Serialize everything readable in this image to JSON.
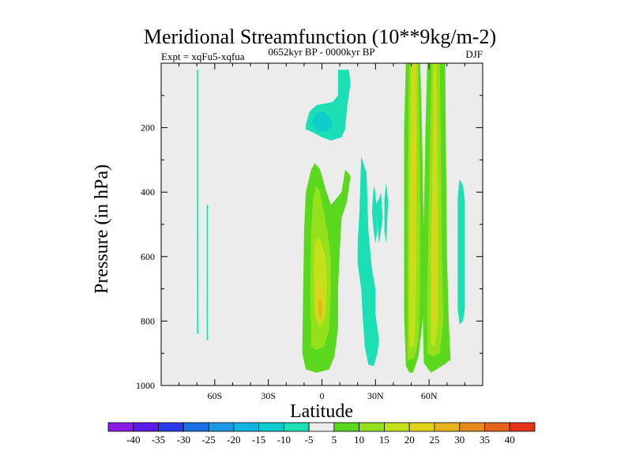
{
  "chart_data": {
    "type": "heatmap",
    "title": "Meridional Streamfunction (10**9kg/m-2)",
    "subtitle_left": "Expt = xqFu5-xqfua",
    "subtitle_center": "0652kyr BP - 0000kyr BP",
    "subtitle_right": "DJF",
    "xlabel": "Latitude",
    "ylabel": "Pressure (in hPa)",
    "xlim": [
      -90,
      90
    ],
    "ylim": [
      1000,
      0
    ],
    "x_ticks": [
      {
        "value": -60,
        "label": "60S"
      },
      {
        "value": -30,
        "label": "30S"
      },
      {
        "value": 0,
        "label": "0"
      },
      {
        "value": 30,
        "label": "30N"
      },
      {
        "value": 60,
        "label": "60N"
      }
    ],
    "y_ticks": [
      {
        "value": 200,
        "label": "200"
      },
      {
        "value": 400,
        "label": "400"
      },
      {
        "value": 600,
        "label": "600"
      },
      {
        "value": 800,
        "label": "800"
      },
      {
        "value": 1000,
        "label": "1000"
      }
    ],
    "colorbar": {
      "levels": [
        -40,
        -35,
        -30,
        -25,
        -20,
        -15,
        -10,
        -5,
        5,
        10,
        15,
        20,
        25,
        30,
        35,
        40
      ],
      "labels": [
        "-40",
        "-35",
        "-30",
        "-25",
        "-20",
        "-15",
        "-10",
        "-5",
        "5",
        "10",
        "15",
        "20",
        "25",
        "30",
        "35",
        "40"
      ],
      "colors": [
        "#8a1ae6",
        "#5e1ae6",
        "#2a3ae6",
        "#1a6ee6",
        "#1a9ae6",
        "#10b4e0",
        "#10cccc",
        "#1ae0b4",
        "#ececec",
        "#5ad81e",
        "#94e01a",
        "#c4e01a",
        "#e0d21a",
        "#e6b41a",
        "#e68a1a",
        "#e6621a",
        "#e6321a"
      ]
    },
    "contours": [
      {
        "name": "sh-thin-band-a",
        "level": -5,
        "polygon": [
          [
            -70,
            20
          ],
          [
            -69.3,
            20
          ],
          [
            -69.2,
            840
          ],
          [
            -69.9,
            840
          ]
        ]
      },
      {
        "name": "sh-thin-band-b",
        "level": -5,
        "polygon": [
          [
            -64.5,
            440
          ],
          [
            -63.8,
            440
          ],
          [
            -63.8,
            860
          ],
          [
            -64.5,
            860
          ]
        ]
      },
      {
        "name": "upper-tropical-cell",
        "level": -5,
        "polygon": [
          [
            -9,
            190
          ],
          [
            -7,
            150
          ],
          [
            -3,
            130
          ],
          [
            2,
            125
          ],
          [
            6,
            120
          ],
          [
            9,
            100
          ],
          [
            9,
            20
          ],
          [
            15,
            20
          ],
          [
            16,
            60
          ],
          [
            14,
            140
          ],
          [
            13,
            205
          ],
          [
            11,
            230
          ],
          [
            5,
            240
          ],
          [
            0,
            230
          ],
          [
            -5,
            215
          ],
          [
            -9,
            205
          ]
        ]
      },
      {
        "name": "upper-tropical-cell-inner",
        "level": -10,
        "polygon": [
          [
            -6,
            185
          ],
          [
            -3,
            155
          ],
          [
            1,
            150
          ],
          [
            5,
            170
          ],
          [
            6,
            195
          ],
          [
            3,
            210
          ],
          [
            -2,
            215
          ]
        ]
      },
      {
        "name": "nh-subtropical-tongue",
        "level": -5,
        "polygon": [
          [
            22,
            290
          ],
          [
            25,
            340
          ],
          [
            26,
            520
          ],
          [
            28,
            640
          ],
          [
            30,
            700
          ],
          [
            30,
            780
          ],
          [
            32,
            860
          ],
          [
            31,
            900
          ],
          [
            29,
            940
          ],
          [
            26,
            935
          ],
          [
            24,
            880
          ],
          [
            23,
            800
          ],
          [
            22,
            700
          ],
          [
            20,
            620
          ],
          [
            20,
            560
          ],
          [
            21,
            460
          ]
        ]
      },
      {
        "name": "nh-spike-a",
        "level": -5,
        "polygon": [
          [
            28,
            460
          ],
          [
            29,
            380
          ],
          [
            30,
            400
          ],
          [
            31,
            520
          ],
          [
            30,
            560
          ],
          [
            29,
            520
          ]
        ]
      },
      {
        "name": "nh-spike-b",
        "level": -5,
        "polygon": [
          [
            30,
            440
          ],
          [
            32,
            420
          ],
          [
            33,
            400
          ],
          [
            34,
            480
          ],
          [
            32,
            560
          ]
        ]
      },
      {
        "name": "nh-spike-c",
        "level": -5,
        "polygon": [
          [
            35,
            420
          ],
          [
            36,
            370
          ],
          [
            37,
            430
          ],
          [
            36,
            560
          ],
          [
            35,
            520
          ]
        ]
      },
      {
        "name": "nh-high-lat-blob",
        "level": -5,
        "polygon": [
          [
            76,
            420
          ],
          [
            77,
            360
          ],
          [
            79,
            380
          ],
          [
            80,
            430
          ],
          [
            80,
            530
          ],
          [
            80,
            660
          ],
          [
            80,
            760
          ],
          [
            79,
            800
          ],
          [
            77,
            810
          ],
          [
            76,
            760
          ]
        ]
      },
      {
        "name": "tropical-positive-cell",
        "level": 5,
        "polygon": [
          [
            -11,
            900
          ],
          [
            -10.5,
            700
          ],
          [
            -10,
            520
          ],
          [
            -9,
            400
          ],
          [
            -6,
            330
          ],
          [
            -4,
            310
          ],
          [
            -1,
            330
          ],
          [
            2,
            390
          ],
          [
            5,
            440
          ],
          [
            8,
            420
          ],
          [
            11,
            400
          ],
          [
            13,
            330
          ],
          [
            16,
            350
          ],
          [
            14,
            430
          ],
          [
            11,
            480
          ],
          [
            10,
            580
          ],
          [
            9,
            700
          ],
          [
            9,
            820
          ],
          [
            7,
            910
          ],
          [
            4,
            950
          ],
          [
            -3,
            960
          ],
          [
            -9,
            950
          ]
        ]
      },
      {
        "name": "tropical-positive-core-1",
        "level": 10,
        "polygon": [
          [
            -6,
            880
          ],
          [
            -6.5,
            700
          ],
          [
            -6,
            520
          ],
          [
            -5,
            420
          ],
          [
            -3,
            380
          ],
          [
            -1,
            400
          ],
          [
            1,
            460
          ],
          [
            3,
            520
          ],
          [
            5,
            600
          ],
          [
            5,
            720
          ],
          [
            4,
            830
          ],
          [
            1,
            880
          ],
          [
            -3,
            890
          ]
        ]
      },
      {
        "name": "tropical-positive-core-2",
        "level": 15,
        "polygon": [
          [
            -4,
            780
          ],
          [
            -4.5,
            640
          ],
          [
            -4,
            560
          ],
          [
            -2,
            540
          ],
          [
            0,
            560
          ],
          [
            2,
            600
          ],
          [
            3,
            680
          ],
          [
            2,
            780
          ],
          [
            -1,
            820
          ]
        ]
      },
      {
        "name": "tropical-positive-core-3",
        "level": 20,
        "polygon": [
          [
            -3,
            760
          ],
          [
            -3,
            700
          ],
          [
            -2,
            680
          ],
          [
            0,
            700
          ],
          [
            1,
            740
          ],
          [
            0,
            790
          ],
          [
            -2,
            810
          ]
        ]
      },
      {
        "name": "tropical-positive-core-4",
        "level": 25,
        "polygon": [
          [
            -2,
            770
          ],
          [
            -2,
            740
          ],
          [
            -1,
            730
          ],
          [
            0,
            750
          ],
          [
            0,
            790
          ],
          [
            -1,
            800
          ]
        ]
      },
      {
        "name": "nh-positive-band-a",
        "level": 5,
        "polygon": [
          [
            47,
            940
          ],
          [
            46,
            780
          ],
          [
            46,
            500
          ],
          [
            46,
            200
          ],
          [
            47,
            0
          ],
          [
            55,
            0
          ],
          [
            56,
            200
          ],
          [
            57,
            500
          ],
          [
            58,
            700
          ],
          [
            56,
            820
          ],
          [
            54,
            910
          ],
          [
            51,
            960
          ],
          [
            49,
            960
          ]
        ]
      },
      {
        "name": "nh-positive-band-a-core",
        "level": 10,
        "polygon": [
          [
            48,
            920
          ],
          [
            48,
            700
          ],
          [
            48,
            400
          ],
          [
            48.5,
            100
          ],
          [
            49,
            0
          ],
          [
            54,
            0
          ],
          [
            54.5,
            200
          ],
          [
            55,
            450
          ],
          [
            55,
            700
          ],
          [
            54,
            860
          ],
          [
            52,
            910
          ],
          [
            50,
            920
          ]
        ]
      },
      {
        "name": "nh-positive-band-a-inner",
        "level": 15,
        "polygon": [
          [
            49,
            880
          ],
          [
            49,
            600
          ],
          [
            49.5,
            300
          ],
          [
            50,
            0
          ],
          [
            53,
            0
          ],
          [
            53,
            300
          ],
          [
            53,
            600
          ],
          [
            52,
            860
          ],
          [
            51,
            880
          ]
        ]
      },
      {
        "name": "nh-positive-band-a-peak",
        "level": 20,
        "polygon": [
          [
            50,
            620
          ],
          [
            50,
            400
          ],
          [
            51,
            200
          ],
          [
            51.5,
            0
          ],
          [
            52,
            0
          ],
          [
            52,
            300
          ],
          [
            51.5,
            620
          ]
        ]
      },
      {
        "name": "nh-positive-band-b",
        "level": 5,
        "polygon": [
          [
            57,
            930
          ],
          [
            56.5,
            800
          ],
          [
            57,
            500
          ],
          [
            58,
            200
          ],
          [
            59,
            0
          ],
          [
            69,
            0
          ],
          [
            69.5,
            300
          ],
          [
            70,
            600
          ],
          [
            71,
            800
          ],
          [
            72,
            920
          ],
          [
            67,
            940
          ],
          [
            61,
            960
          ]
        ]
      },
      {
        "name": "nh-positive-band-b-core",
        "level": 10,
        "polygon": [
          [
            59,
            900
          ],
          [
            59,
            700
          ],
          [
            60,
            400
          ],
          [
            61,
            100
          ],
          [
            61.5,
            0
          ],
          [
            66,
            0
          ],
          [
            66.5,
            200
          ],
          [
            67,
            500
          ],
          [
            68,
            800
          ],
          [
            66,
            900
          ],
          [
            62,
            910
          ]
        ]
      },
      {
        "name": "nh-positive-band-b-inner",
        "level": 15,
        "polygon": [
          [
            61,
            870
          ],
          [
            61,
            600
          ],
          [
            62,
            300
          ],
          [
            62.5,
            0
          ],
          [
            64,
            0
          ],
          [
            64.5,
            200
          ],
          [
            65,
            500
          ],
          [
            65,
            800
          ],
          [
            63,
            880
          ]
        ]
      },
      {
        "name": "nh-positive-band-b-peak",
        "level": 20,
        "polygon": [
          [
            62,
            800
          ],
          [
            62,
            500
          ],
          [
            63,
            200
          ],
          [
            63.5,
            0
          ],
          [
            64,
            0
          ],
          [
            64,
            300
          ],
          [
            63.5,
            800
          ]
        ]
      }
    ]
  }
}
